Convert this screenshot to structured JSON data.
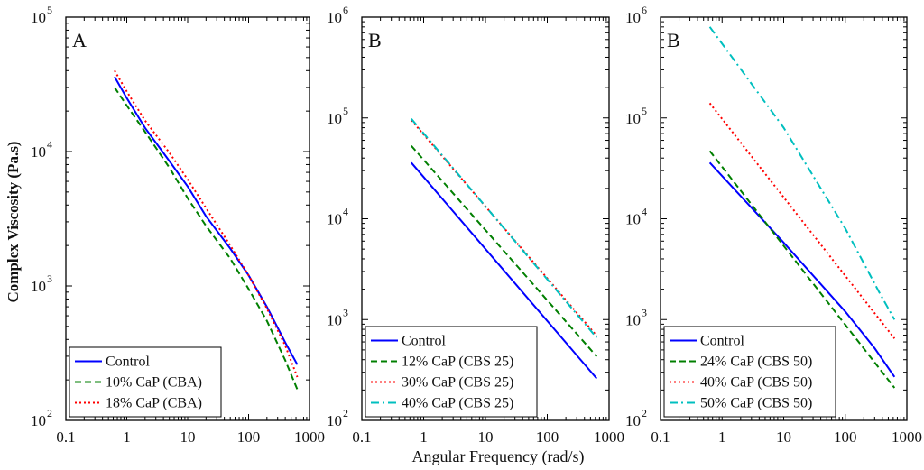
{
  "figure": {
    "ylabel": "Complex Viscosity (Pa.s)",
    "xlabel": "Angular Frequency (rad/s)"
  },
  "chart_data": [
    {
      "type": "line",
      "panel_label": "A",
      "xscale": "log",
      "yscale": "log",
      "xlim": [
        0.1,
        1000
      ],
      "ylim": [
        100,
        100000
      ],
      "x_ticks": [
        "0.1",
        "1",
        "10",
        "100",
        "1000"
      ],
      "y_ticks": [
        {
          "base": "10",
          "exp": "2"
        },
        {
          "base": "10",
          "exp": "3"
        },
        {
          "base": "10",
          "exp": "4"
        },
        {
          "base": "10",
          "exp": "5"
        }
      ],
      "legend_position": "bottom-left",
      "series": [
        {
          "name": "Control",
          "color": "#0000ff",
          "style": "solid",
          "x": [
            0.63,
            1,
            2,
            5,
            10,
            20,
            50,
            100,
            200,
            400,
            630
          ],
          "y": [
            36000,
            25000,
            15000,
            8500,
            5500,
            3300,
            1900,
            1200,
            700,
            380,
            260
          ]
        },
        {
          "name": "10% CaP (CBA)",
          "color": "#007f00",
          "style": "dashed",
          "x": [
            0.63,
            1,
            2,
            5,
            10,
            20,
            50,
            100,
            200,
            400,
            630
          ],
          "y": [
            30000,
            22000,
            14000,
            7600,
            4500,
            2800,
            1600,
            950,
            550,
            280,
            170
          ]
        },
        {
          "name": "18% CaP (CBA)",
          "color": "#ff0000",
          "style": "dotted",
          "x": [
            0.63,
            1,
            2,
            5,
            10,
            20,
            50,
            100,
            200,
            400,
            630
          ],
          "y": [
            40000,
            28000,
            17000,
            9800,
            6200,
            3800,
            2000,
            1200,
            680,
            360,
            210
          ]
        }
      ]
    },
    {
      "type": "line",
      "panel_label": "B",
      "xscale": "log",
      "yscale": "log",
      "xlim": [
        0.1,
        1000
      ],
      "ylim": [
        100,
        1000000
      ],
      "x_ticks": [
        "0.1",
        "1",
        "10",
        "100",
        "1000"
      ],
      "y_ticks": [
        {
          "base": "10",
          "exp": "2"
        },
        {
          "base": "10",
          "exp": "3"
        },
        {
          "base": "10",
          "exp": "4"
        },
        {
          "base": "10",
          "exp": "5"
        },
        {
          "base": "10",
          "exp": "6"
        }
      ],
      "legend_position": "bottom-left",
      "series": [
        {
          "name": "Control",
          "color": "#0000ff",
          "style": "solid",
          "x": [
            0.63,
            630
          ],
          "y": [
            36000,
            260
          ]
        },
        {
          "name": "12% CaP (CBS 25)",
          "color": "#007f00",
          "style": "dashed",
          "x": [
            0.63,
            630
          ],
          "y": [
            53000,
            430
          ]
        },
        {
          "name": "30% CaP (CBS 25)",
          "color": "#ff0000",
          "style": "dotted",
          "x": [
            0.63,
            630
          ],
          "y": [
            95000,
            690
          ]
        },
        {
          "name": "40% CaP (CBS 25)",
          "color": "#00bfbf",
          "style": "dashdot",
          "x": [
            0.63,
            630
          ],
          "y": [
            98000,
            660
          ]
        }
      ]
    },
    {
      "type": "line",
      "panel_label": "B",
      "xscale": "log",
      "yscale": "log",
      "xlim": [
        0.1,
        1000
      ],
      "ylim": [
        100,
        1000000
      ],
      "x_ticks": [
        "0.1",
        "1",
        "10",
        "100",
        "1000"
      ],
      "y_ticks": [
        {
          "base": "10",
          "exp": "2"
        },
        {
          "base": "10",
          "exp": "3"
        },
        {
          "base": "10",
          "exp": "4"
        },
        {
          "base": "10",
          "exp": "5"
        },
        {
          "base": "10",
          "exp": "6"
        }
      ],
      "legend_position": "bottom-left",
      "series": [
        {
          "name": "Control",
          "color": "#0000ff",
          "style": "solid",
          "x": [
            0.63,
            10,
            100,
            300,
            630
          ],
          "y": [
            36000,
            5800,
            1200,
            520,
            270
          ]
        },
        {
          "name": "24% CaP (CBS 50)",
          "color": "#007f00",
          "style": "dashed",
          "x": [
            0.63,
            630
          ],
          "y": [
            47000,
            210
          ]
        },
        {
          "name": "40% CaP (CBS 50)",
          "color": "#ff0000",
          "style": "dotted",
          "x": [
            0.63,
            630
          ],
          "y": [
            140000,
            650
          ]
        },
        {
          "name": "50% CaP (CBS 50)",
          "color": "#00bfbf",
          "style": "dashdot",
          "x": [
            0.63,
            10,
            100,
            350,
            630
          ],
          "y": [
            800000,
            80000,
            8000,
            1900,
            1000
          ]
        }
      ]
    }
  ]
}
